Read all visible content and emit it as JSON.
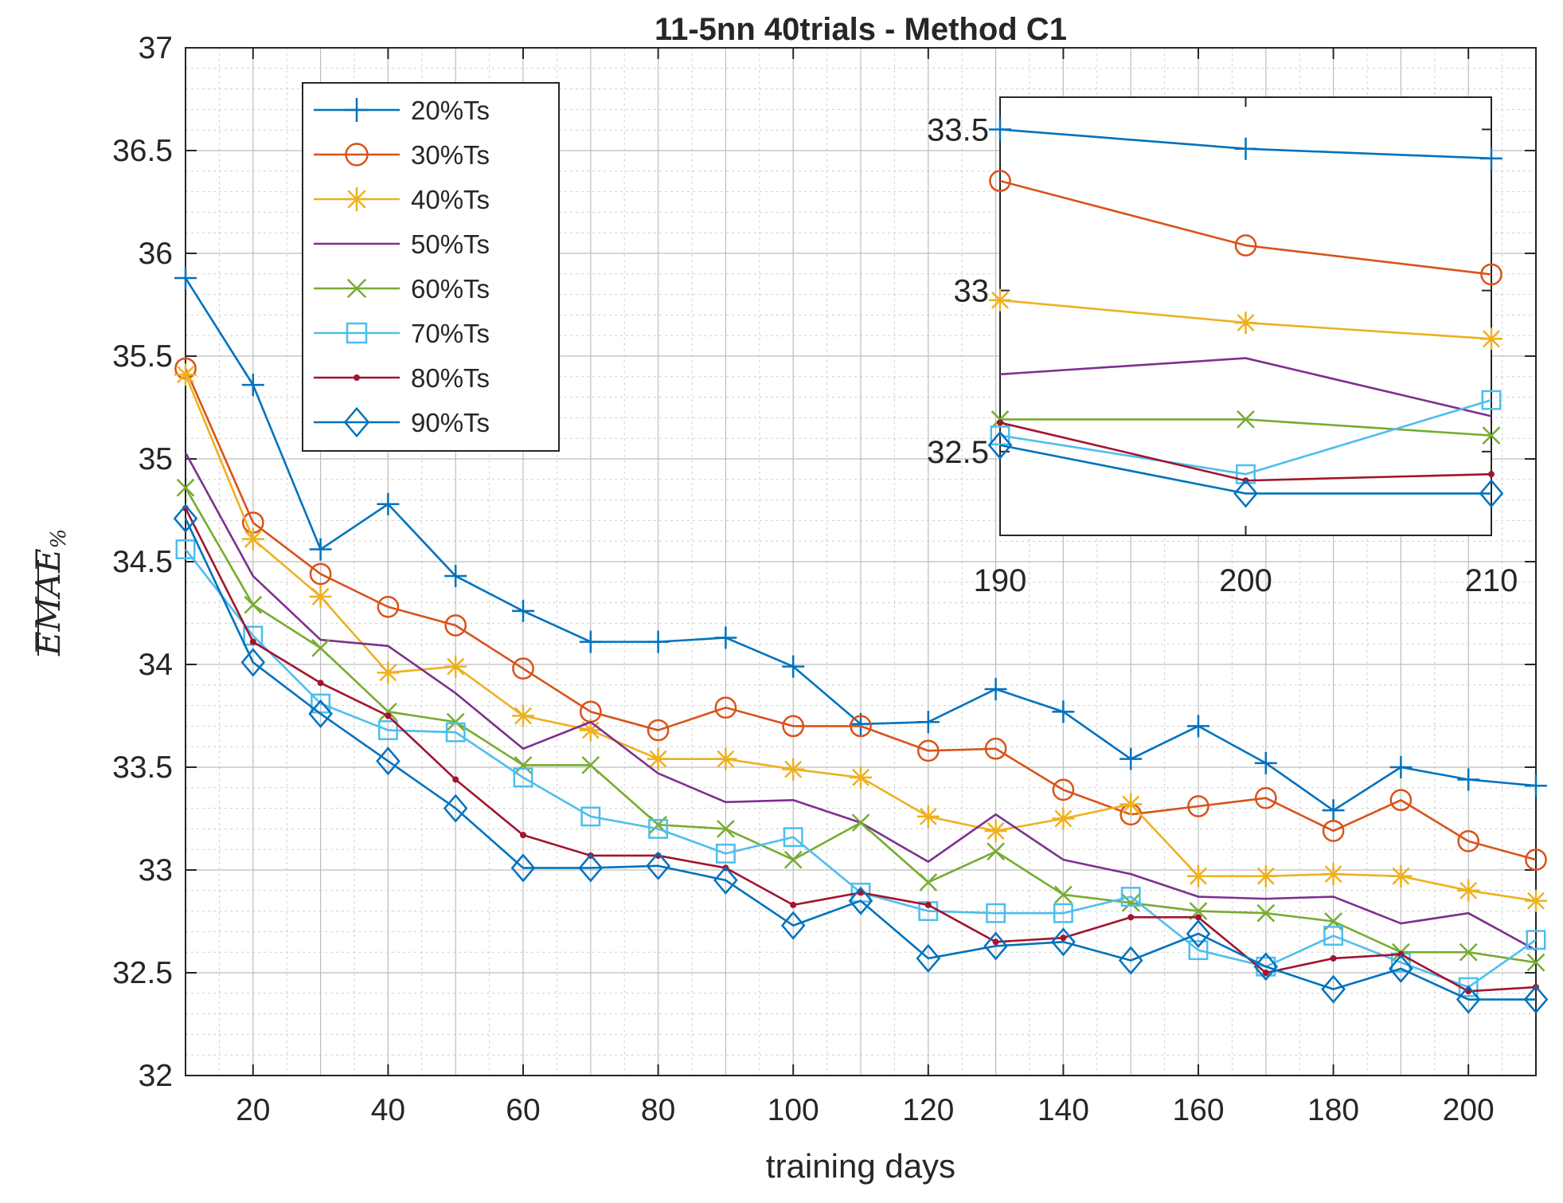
{
  "chart_data": {
    "type": "line",
    "title": "11-5nn 40trials - Method C1",
    "xlabel": "training days",
    "ylabel": "EMAE",
    "ylabel_subscript": "%",
    "xlim": [
      10,
      210
    ],
    "ylim": [
      32,
      37
    ],
    "xticks": [
      20,
      40,
      60,
      80,
      100,
      120,
      140,
      160,
      180,
      200
    ],
    "yticks": [
      32,
      32.5,
      33,
      33.5,
      34,
      34.5,
      35,
      35.5,
      36,
      36.5,
      37
    ],
    "grid": "major and minor",
    "legend_position": "top-left",
    "x": [
      10,
      20,
      30,
      40,
      50,
      60,
      70,
      80,
      90,
      100,
      110,
      120,
      130,
      140,
      150,
      160,
      170,
      180,
      190,
      200,
      210
    ],
    "series": [
      {
        "name": "20%Ts",
        "color": "#0072BD",
        "marker": "plus",
        "values": [
          35.88,
          35.36,
          34.56,
          34.78,
          34.43,
          34.26,
          34.11,
          34.11,
          34.13,
          33.99,
          33.71,
          33.72,
          33.88,
          33.77,
          33.54,
          33.7,
          33.52,
          33.29,
          33.5,
          33.44,
          33.41
        ]
      },
      {
        "name": "30%Ts",
        "color": "#D95319",
        "marker": "circle",
        "values": [
          35.44,
          34.69,
          34.44,
          34.28,
          34.19,
          33.98,
          33.77,
          33.68,
          33.79,
          33.7,
          33.7,
          33.58,
          33.59,
          33.39,
          33.27,
          33.31,
          33.35,
          33.19,
          33.34,
          33.14,
          33.05
        ]
      },
      {
        "name": "40%Ts",
        "color": "#EDB120",
        "marker": "asterisk",
        "values": [
          35.41,
          34.61,
          34.33,
          33.96,
          33.99,
          33.75,
          33.68,
          33.54,
          33.54,
          33.49,
          33.45,
          33.26,
          33.19,
          33.25,
          33.32,
          32.97,
          32.97,
          32.98,
          32.97,
          32.9,
          32.85
        ]
      },
      {
        "name": "50%Ts",
        "color": "#7E2F8E",
        "marker": "none",
        "values": [
          35.03,
          34.43,
          34.12,
          34.09,
          33.86,
          33.59,
          33.72,
          33.47,
          33.33,
          33.34,
          33.23,
          33.04,
          33.27,
          33.05,
          32.98,
          32.87,
          32.86,
          32.87,
          32.74,
          32.79,
          32.61
        ]
      },
      {
        "name": "60%Ts",
        "color": "#77AC30",
        "marker": "x",
        "values": [
          34.86,
          34.29,
          34.08,
          33.77,
          33.72,
          33.51,
          33.51,
          33.22,
          33.2,
          33.05,
          33.23,
          32.94,
          33.09,
          32.88,
          32.84,
          32.8,
          32.79,
          32.75,
          32.6,
          32.6,
          32.55
        ]
      },
      {
        "name": "70%Ts",
        "color": "#4DBEEE",
        "marker": "square",
        "values": [
          34.56,
          34.14,
          33.81,
          33.68,
          33.67,
          33.45,
          33.26,
          33.2,
          33.08,
          33.16,
          32.89,
          32.8,
          32.79,
          32.79,
          32.87,
          32.61,
          32.53,
          32.68,
          32.55,
          32.43,
          32.66
        ]
      },
      {
        "name": "80%Ts",
        "color": "#A2142F",
        "marker": "dot",
        "values": [
          34.76,
          34.11,
          33.91,
          33.75,
          33.44,
          33.17,
          33.07,
          33.07,
          33.01,
          32.83,
          32.89,
          32.83,
          32.65,
          32.67,
          32.77,
          32.77,
          32.5,
          32.57,
          32.59,
          32.41,
          32.43
        ]
      },
      {
        "name": "90%Ts",
        "color": "#0072BD",
        "marker": "diamond",
        "values": [
          34.71,
          34.01,
          33.76,
          33.53,
          33.3,
          33.01,
          33.01,
          33.02,
          32.95,
          32.73,
          32.85,
          32.57,
          32.63,
          32.65,
          32.56,
          32.69,
          32.53,
          32.42,
          32.52,
          32.37,
          32.37
        ]
      }
    ],
    "inset": {
      "xlim": [
        190,
        210
      ],
      "ylim": [
        32.24,
        33.6
      ],
      "xticks": [
        190,
        200,
        210
      ],
      "yticks": [
        32.5,
        33,
        33.5
      ],
      "x": [
        190,
        200,
        210
      ]
    }
  }
}
